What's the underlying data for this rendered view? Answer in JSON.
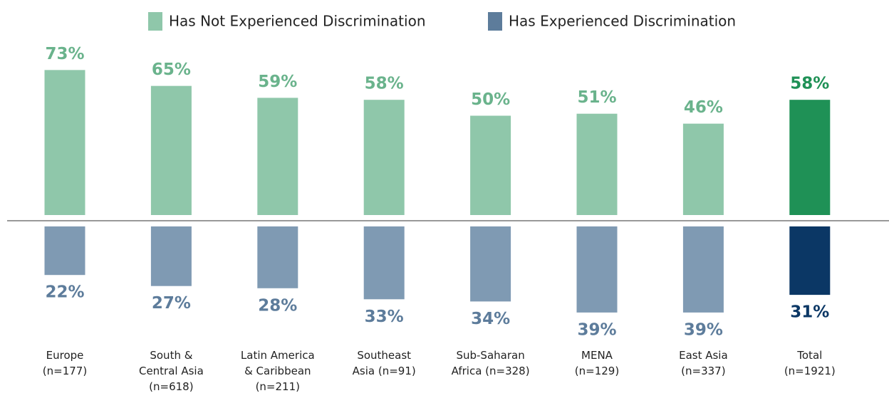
{
  "chart_data": {
    "type": "diverging_bar",
    "categories": [
      "Europe (n=177)",
      "South & Central Asia (n=618)",
      "Latin America & Caribbean (n=211)",
      "Southeast Asia (n=91)",
      "Sub-Saharan Africa (n=328)",
      "MENA (n=129)",
      "East Asia (n=337)",
      "Total (n=1921)"
    ],
    "series": [
      {
        "name": "Has Not Experienced Discrimination",
        "color": "#8fc7aa",
        "direction": "up",
        "colors": [
          "#8fc7aa",
          "#8fc7aa",
          "#8fc7aa",
          "#8fc7aa",
          "#8fc7aa",
          "#8fc7aa",
          "#8fc7aa",
          "#1f9156"
        ],
        "values": [
          73,
          65,
          59,
          58,
          50,
          51,
          46,
          58
        ],
        "value_labels": [
          "73%",
          "65%",
          "59%",
          "58%",
          "50%",
          "51%",
          "46%",
          "58%"
        ]
      },
      {
        "name": "Has Experienced Discrimination",
        "color": "#5d7c9b",
        "direction": "down",
        "colors": [
          "#7f9ab3",
          "#7f9ab3",
          "#7f9ab3",
          "#7f9ab3",
          "#7f9ab3",
          "#7f9ab3",
          "#7f9ab3",
          "#0b3765"
        ],
        "values": [
          22,
          27,
          28,
          33,
          34,
          39,
          39,
          31
        ],
        "value_labels": [
          "22%",
          "27%",
          "28%",
          "33%",
          "34%",
          "39%",
          "39%",
          "31%"
        ]
      }
    ]
  }
}
